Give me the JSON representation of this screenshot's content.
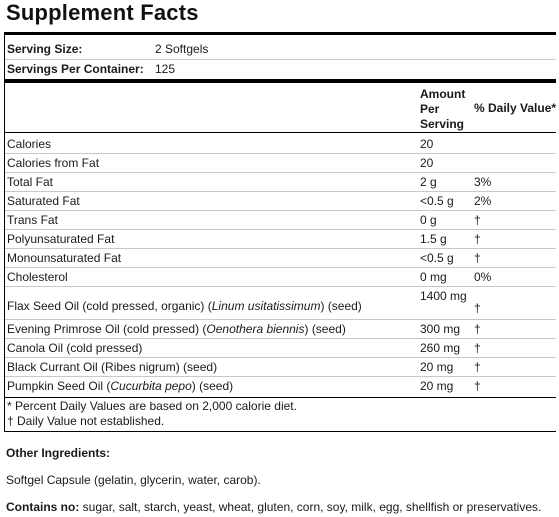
{
  "title": "Supplement Facts",
  "serving": {
    "size_label": "Serving Size:",
    "size_value": "2 Softgels",
    "per_container_label": "Servings Per Container:",
    "per_container_value": "125"
  },
  "header": {
    "amount": "Amount Per Serving",
    "dv": "% Daily Value*"
  },
  "rows": [
    {
      "name": "Calories",
      "amount": "20",
      "dv": ""
    },
    {
      "name": "Calories from Fat",
      "amount": "20",
      "dv": ""
    },
    {
      "name": "Total Fat",
      "amount": "2 g",
      "dv": "3%"
    },
    {
      "name": "Saturated Fat",
      "amount": "<0.5 g",
      "dv": "2%"
    },
    {
      "name": "Trans Fat",
      "amount": "0 g",
      "dv": "†"
    },
    {
      "name": "Polyunsaturated Fat",
      "amount": "1.5 g",
      "dv": "†"
    },
    {
      "name": "Monounsaturated Fat",
      "amount": "<0.5 g",
      "dv": "†"
    },
    {
      "name": "Cholesterol",
      "amount": "0 mg",
      "dv": "0%"
    },
    {
      "name_pre": "Flax Seed Oil (cold pressed, organic) (",
      "name_it": "Linum usitatissimum",
      "name_post": ") (seed)",
      "amount": "1400 mg",
      "dv": "†"
    },
    {
      "name_pre": "Evening Primrose Oil (cold pressed) (",
      "name_it": "Oenothera biennis",
      "name_post": ") (seed)",
      "amount": "300 mg",
      "dv": "†"
    },
    {
      "name": "Canola Oil (cold pressed)",
      "amount": "260 mg",
      "dv": "†"
    },
    {
      "name": "Black Currant Oil (Ribes nigrum) (seed)",
      "amount": "20 mg",
      "dv": "†"
    },
    {
      "name_pre": "Pumpkin Seed Oil (",
      "name_it": "Cucurbita pepo",
      "name_post": ") (seed)",
      "amount": "20 mg",
      "dv": "†"
    }
  ],
  "footnotes": {
    "dv_note": "* Percent Daily Values are based on 2,000 calorie diet.",
    "dagger_note": "† Daily Value not established."
  },
  "other_ingredients": {
    "heading": "Other Ingredients:",
    "text": "Softgel Capsule (gelatin, glycerin, water, carob)."
  },
  "contains_no": {
    "label": "Contains no:",
    "text": "sugar, salt, starch, yeast, wheat, gluten, corn, soy, milk, egg, shellfish or preservatives."
  }
}
